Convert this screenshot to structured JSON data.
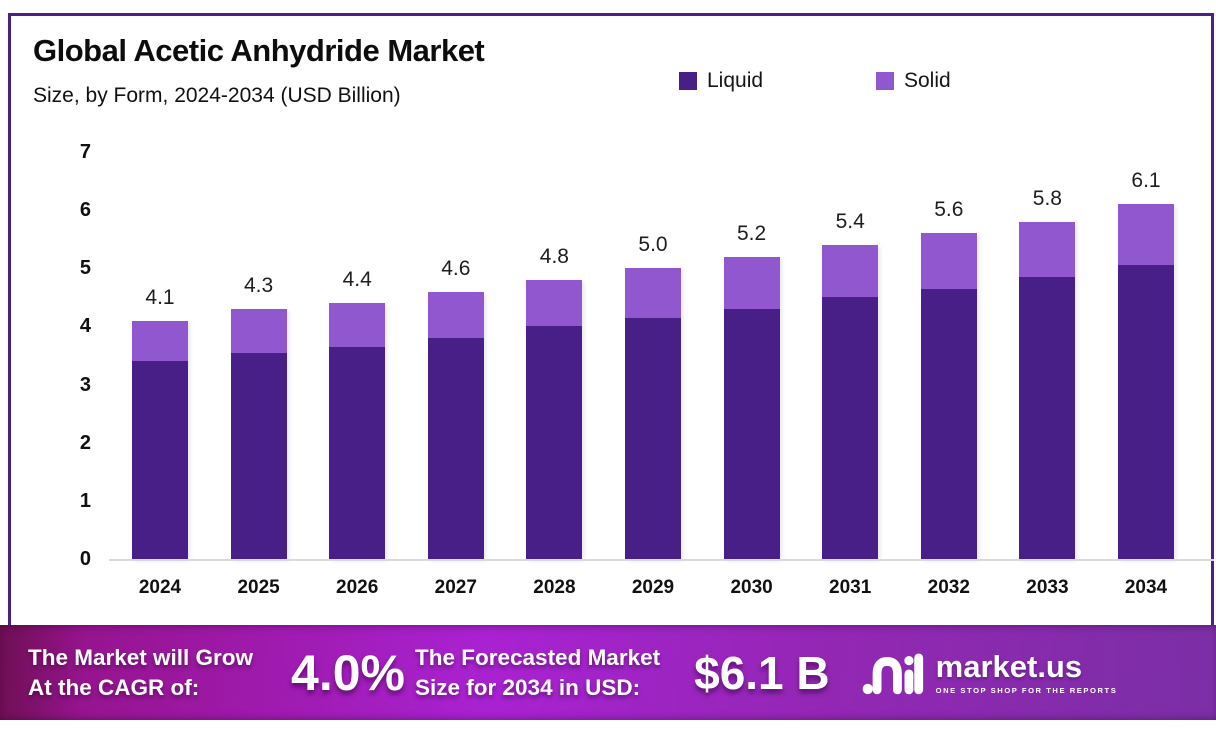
{
  "header": {
    "title": "Global Acetic Anhydride Market",
    "subtitle": "Size, by Form, 2024-2034 (USD Billion)"
  },
  "legend": [
    {
      "label": "Liquid",
      "color": "#481f87"
    },
    {
      "label": "Solid",
      "color": "#9157cf"
    }
  ],
  "chart_data": {
    "type": "bar",
    "stacked": true,
    "title": "Global Acetic Anhydride Market Size, by Form, 2024-2034 (USD Billion)",
    "categories": [
      "2024",
      "2025",
      "2026",
      "2027",
      "2028",
      "2029",
      "2030",
      "2031",
      "2032",
      "2033",
      "2034"
    ],
    "series": [
      {
        "name": "Liquid",
        "color": "#481f87",
        "values": [
          3.4,
          3.55,
          3.65,
          3.8,
          4.0,
          4.15,
          4.3,
          4.5,
          4.65,
          4.85,
          5.05
        ]
      },
      {
        "name": "Solid",
        "color": "#9157cf",
        "values": [
          0.7,
          0.75,
          0.75,
          0.8,
          0.8,
          0.85,
          0.9,
          0.9,
          0.95,
          0.95,
          1.05
        ]
      }
    ],
    "totals": [
      4.1,
      4.3,
      4.4,
      4.6,
      4.8,
      5.0,
      5.2,
      5.4,
      5.6,
      5.8,
      6.1
    ],
    "total_labels": [
      "4.1",
      "4.3",
      "4.4",
      "4.6",
      "4.8",
      "5.0",
      "5.2",
      "5.4",
      "5.6",
      "5.8",
      "6.1"
    ],
    "xlabel": "",
    "ylabel": "",
    "ylim": [
      0,
      7
    ],
    "yticks": [
      0,
      1,
      2,
      3,
      4,
      5,
      6,
      7
    ],
    "grid": false,
    "legend_position": "top-right"
  },
  "banner": {
    "cagr_label_line1": "The Market will Grow",
    "cagr_label_line2": "At the CAGR of:",
    "cagr_value": "4.0%",
    "forecast_label_line1": "The Forecasted Market",
    "forecast_label_line2": "Size for 2034 in USD:",
    "forecast_value": "$6.1 B",
    "brand": {
      "name": "market.us",
      "tagline": "ONE STOP SHOP FOR THE REPORTS"
    }
  },
  "colors": {
    "card_border": "#4b2185",
    "liquid": "#481f87",
    "solid": "#9157cf",
    "baseline": "#d9d9d9",
    "banner_left": "#96148e",
    "banner_mid": "#a922d2",
    "banner_right": "#7b2fa6"
  }
}
